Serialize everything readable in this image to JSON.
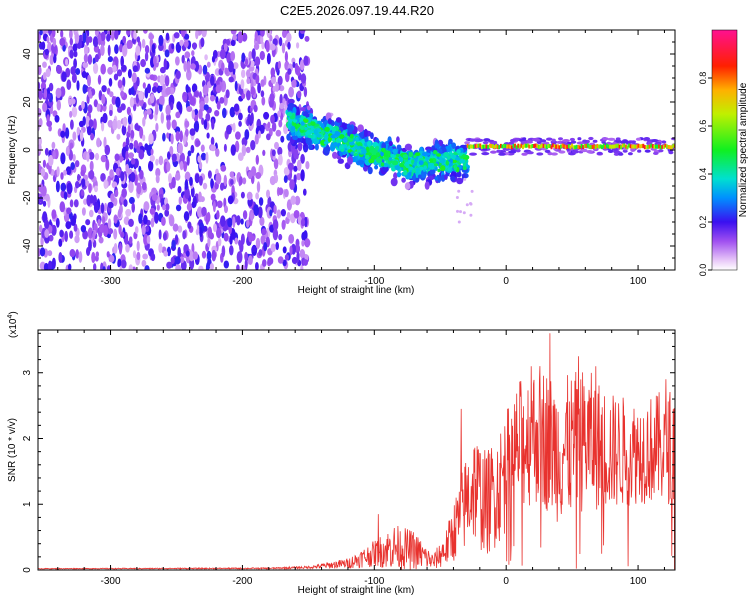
{
  "title": "C2E5.2026.097.19.44.R20",
  "colors": {
    "background": "#ffffff",
    "axis": "#000000",
    "snr_line": "#e8322e",
    "colormap": [
      "#ffffff",
      "#e6c8f5",
      "#a050f0",
      "#6a00e8",
      "#2a10f0",
      "#0090ff",
      "#00e0d0",
      "#20f040",
      "#c0f000",
      "#ff8000",
      "#ff0000",
      "#ff1090"
    ]
  },
  "chart_data": [
    {
      "type": "heatmap",
      "title": "C2E5.2026.097.19.44.R20",
      "xlabel": "Height of straight line (km)",
      "ylabel": "Frequency (Hz)",
      "xlim": [
        -355,
        128
      ],
      "ylim": [
        -50,
        50
      ],
      "xticks": [
        -300,
        -200,
        -100,
        0,
        100
      ],
      "yticks": [
        -40,
        -20,
        0,
        20,
        40
      ],
      "xtick_labels": [
        "-300",
        "-200",
        "-100",
        "0",
        "100"
      ],
      "ytick_labels": [
        "-40",
        "-20",
        "0",
        "20",
        "40"
      ],
      "colorbar": {
        "label": "Normalized spectral amplitude",
        "range": [
          0,
          1
        ],
        "ticks": [
          0.0,
          0.2,
          0.4,
          0.6,
          0.8
        ],
        "tick_labels": [
          "0.0",
          "0.2",
          "0.4",
          "0.6",
          "0.8"
        ]
      },
      "regions": [
        {
          "name": "noise",
          "x_range": [
            -355,
            -155
          ],
          "freq_range": [
            -50,
            50
          ],
          "amplitude": 0.15
        },
        {
          "name": "transition",
          "x_range": [
            -165,
            -30
          ],
          "freq_center": [
            12,
            3,
            -6,
            -4
          ],
          "freq_width": 14,
          "amplitude": 0.45
        },
        {
          "name": "carrier",
          "x_range": [
            -30,
            128
          ],
          "freq_center": 1.5,
          "freq_width": 3,
          "amplitude": 0.85
        }
      ]
    },
    {
      "type": "line",
      "xlabel": "Height of straight line (km)",
      "ylabel": "SNR (10 * v/v)",
      "multiplier_label": "(x10",
      "multiplier_exp": "4",
      "multiplier_close": ")",
      "xlim": [
        -355,
        128
      ],
      "ylim": [
        0,
        3.65
      ],
      "xticks": [
        -300,
        -200,
        -100,
        0,
        100
      ],
      "yticks": [
        0,
        1,
        2,
        3
      ],
      "xtick_labels": [
        "-300",
        "-200",
        "-100",
        "0",
        "100"
      ],
      "ytick_labels": [
        "0",
        "1",
        "2",
        "3"
      ],
      "envelope": [
        {
          "x": -355,
          "mean": 0.02,
          "amp": 0.005
        },
        {
          "x": -180,
          "mean": 0.025,
          "amp": 0.01
        },
        {
          "x": -150,
          "mean": 0.04,
          "amp": 0.02
        },
        {
          "x": -120,
          "mean": 0.1,
          "amp": 0.08
        },
        {
          "x": -100,
          "mean": 0.25,
          "amp": 0.2
        },
        {
          "x": -85,
          "mean": 0.35,
          "amp": 0.35
        },
        {
          "x": -70,
          "mean": 0.3,
          "amp": 0.3
        },
        {
          "x": -55,
          "mean": 0.12,
          "amp": 0.12
        },
        {
          "x": -45,
          "mean": 0.35,
          "amp": 0.3
        },
        {
          "x": -35,
          "mean": 0.8,
          "amp": 0.6
        },
        {
          "x": -25,
          "mean": 1.3,
          "amp": 0.9
        },
        {
          "x": -15,
          "mean": 1.0,
          "amp": 0.8
        },
        {
          "x": -5,
          "mean": 1.3,
          "amp": 0.9
        },
        {
          "x": 10,
          "mean": 1.9,
          "amp": 1.0
        },
        {
          "x": 25,
          "mean": 2.1,
          "amp": 1.1
        },
        {
          "x": 40,
          "mean": 1.8,
          "amp": 1.1
        },
        {
          "x": 60,
          "mean": 2.0,
          "amp": 1.1
        },
        {
          "x": 80,
          "mean": 1.8,
          "amp": 0.9
        },
        {
          "x": 100,
          "mean": 1.8,
          "amp": 0.8
        },
        {
          "x": 128,
          "mean": 1.9,
          "amp": 0.9
        }
      ],
      "peaks": [
        {
          "x": 33,
          "y": 3.6
        },
        {
          "x": 19,
          "y": 3.1
        },
        {
          "x": 55,
          "y": 3.25
        },
        {
          "x": 68,
          "y": 3.1
        },
        {
          "x": 121,
          "y": 2.9
        },
        {
          "x": -34,
          "y": 2.45
        },
        {
          "x": -97,
          "y": 0.85
        }
      ]
    }
  ]
}
